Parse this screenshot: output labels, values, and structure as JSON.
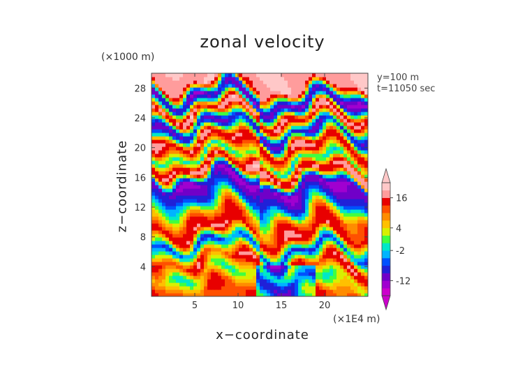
{
  "chart_data": {
    "type": "heatmap",
    "title": "zonal velocity",
    "xlabel": "x−coordinate",
    "ylabel": "z−coordinate",
    "x_unit_label": "(×1E4 m)",
    "y_unit_label": "(×1000 m)",
    "annotations": [
      "y=100 m",
      "t=11050 sec"
    ],
    "xlim": [
      0,
      25
    ],
    "ylim": [
      0,
      30
    ],
    "x_ticks": [
      5,
      10,
      15,
      20
    ],
    "y_ticks": [
      4,
      8,
      12,
      16,
      20,
      24,
      28
    ],
    "colorbar": {
      "levels": [
        -20,
        -16,
        -12,
        -8,
        -6,
        -4,
        -2,
        0,
        2,
        4,
        6,
        8,
        12,
        16,
        20
      ],
      "labeled_ticks": [
        -12,
        -2,
        4,
        16
      ],
      "colors": [
        "#cc00cc",
        "#a000d0",
        "#7000c8",
        "#2020d8",
        "#0050ff",
        "#00b4ff",
        "#00e8c8",
        "#40ff40",
        "#d8f000",
        "#ffc000",
        "#ff8c00",
        "#ff5000",
        "#e80000",
        "#ff9c9c",
        "#ffc8c8"
      ]
    },
    "bands": [
      {
        "z": 1,
        "u": 7
      },
      {
        "z": 3,
        "u": 0
      },
      {
        "z": 5,
        "u": 10
      },
      {
        "z": 7,
        "u": -9
      },
      {
        "z": 9,
        "u": 12
      },
      {
        "z": 11,
        "u": 6
      },
      {
        "z": 13,
        "u": -6
      },
      {
        "z": 15.5,
        "u": -16
      },
      {
        "z": 17.5,
        "u": 14
      },
      {
        "z": 19,
        "u": -4
      },
      {
        "z": 21,
        "u": 13
      },
      {
        "z": 23,
        "u": -12
      },
      {
        "z": 25,
        "u": 14
      },
      {
        "z": 27,
        "u": -16
      },
      {
        "z": 29,
        "u": 15
      }
    ]
  }
}
